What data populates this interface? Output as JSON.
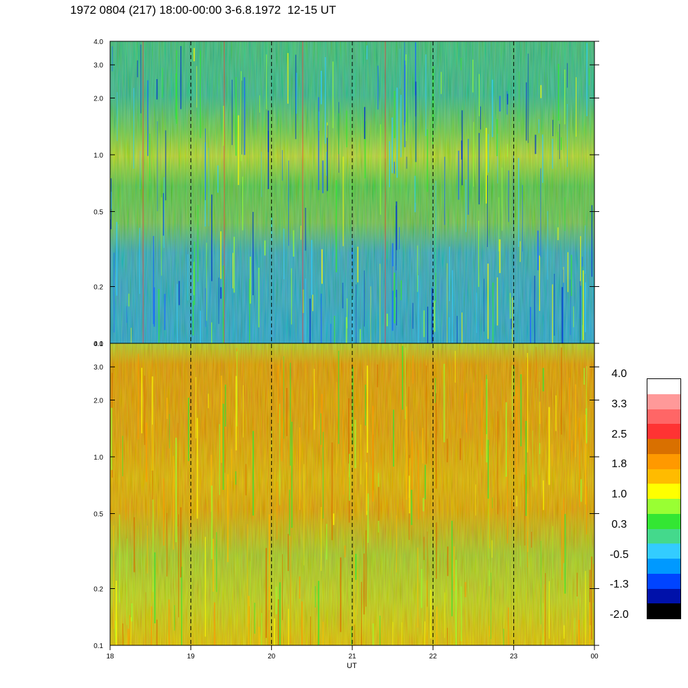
{
  "title": "1972 0804 (217) 18:00-00:00 3-6.8.1972  12-15 UT",
  "chart_data": {
    "type": "heatmap",
    "xlabel": "UT",
    "x_ticks": [
      "18",
      "19",
      "20",
      "21",
      "22",
      "23",
      "00"
    ],
    "x_range": [
      18,
      24
    ],
    "panels": [
      {
        "name": "upper",
        "y_scale": "log",
        "y_range": [
          0.1,
          4.0
        ],
        "y_ticks": [
          "0.1",
          "0.2",
          "0.5",
          "1.0",
          "2.0",
          "3.0",
          "4.0"
        ]
      },
      {
        "name": "lower",
        "y_scale": "log",
        "y_range": [
          0.1,
          4.0
        ],
        "y_ticks": [
          "0.1",
          "0.2",
          "0.5",
          "1.0",
          "2.0",
          "3.0",
          "4.0"
        ]
      }
    ],
    "dashed_hour_lines": [
      "19",
      "20",
      "21",
      "22",
      "23"
    ],
    "colorbar": {
      "range": [
        -2.0,
        4.0
      ],
      "labels": [
        "4.0",
        "3.3",
        "2.5",
        "1.8",
        "1.0",
        "0.3",
        "-0.5",
        "-1.3",
        "-2.0"
      ],
      "colors": [
        "#ffffff",
        "#ff9999",
        "#ff6666",
        "#ff3333",
        "#d97000",
        "#ff9900",
        "#ffbb00",
        "#ffff00",
        "#99ff33",
        "#33e633",
        "#44d98c",
        "#33ccff",
        "#0099ff",
        "#0044ff",
        "#0011aa",
        "#000000"
      ]
    }
  }
}
